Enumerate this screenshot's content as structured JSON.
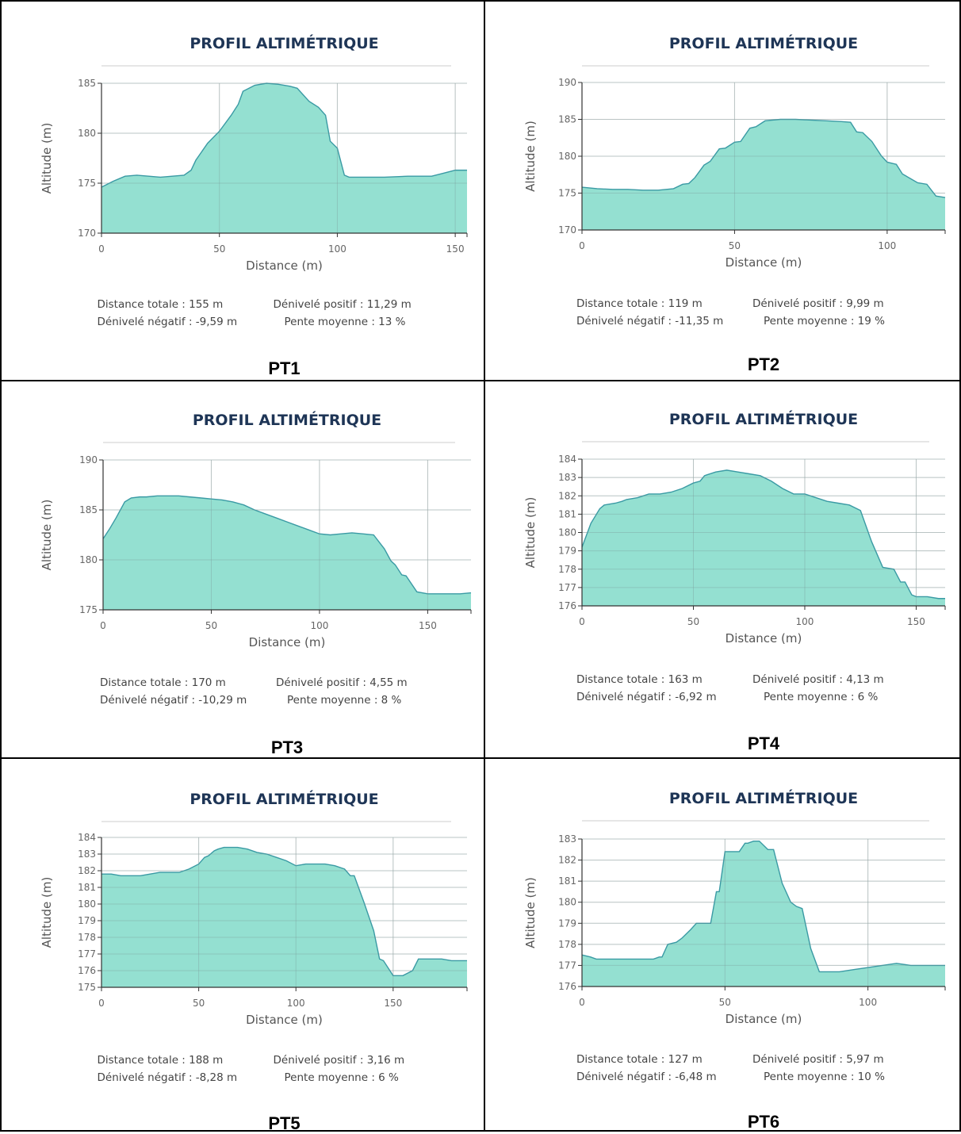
{
  "panels": [
    {
      "label": "PT1",
      "title": "PROFIL ALTIMÉTRIQUE",
      "stats": {
        "distance": "Distance totale : 155 m",
        "dplus": "Dénivelé positif : 11,29 m",
        "dminus": "Dénivelé négatif : -9,59 m",
        "slope": "Pente moyenne : 13 %"
      },
      "chart_data": {
        "type": "area",
        "xlabel": "Distance (m)",
        "ylabel": "Altitude (m)",
        "xlim": [
          0,
          155
        ],
        "ylim": [
          170,
          185
        ],
        "xticks": [
          0,
          50,
          100,
          150
        ],
        "yticks": [
          170,
          175,
          180,
          185
        ],
        "grid": true,
        "color": "#94e0d1",
        "x": [
          0,
          5,
          10,
          15,
          20,
          25,
          30,
          35,
          38,
          40,
          45,
          50,
          55,
          58,
          60,
          65,
          70,
          75,
          80,
          83,
          88,
          92,
          95,
          97,
          100,
          103,
          105,
          110,
          120,
          130,
          140,
          145,
          150,
          155
        ],
        "y": [
          174.6,
          175.2,
          175.7,
          175.8,
          175.7,
          175.6,
          175.7,
          175.8,
          176.3,
          177.3,
          179.0,
          180.2,
          181.8,
          182.9,
          184.2,
          184.8,
          185.0,
          184.9,
          184.7,
          184.5,
          183.2,
          182.6,
          181.8,
          179.2,
          178.5,
          175.8,
          175.6,
          175.6,
          175.6,
          175.7,
          175.7,
          176.0,
          176.3,
          176.3
        ]
      }
    },
    {
      "label": "PT2",
      "title": "PROFIL ALTIMÉTRIQUE",
      "stats": {
        "distance": "Distance totale : 119 m",
        "dplus": "Dénivelé positif : 9,99 m",
        "dminus": "Dénivelé négatif : -11,35 m",
        "slope": "Pente moyenne : 19 %"
      },
      "chart_data": {
        "type": "area",
        "xlabel": "Distance (m)",
        "ylabel": "Altitude (m)",
        "xlim": [
          0,
          119
        ],
        "ylim": [
          170,
          190
        ],
        "xticks": [
          0,
          50,
          100
        ],
        "yticks": [
          170,
          175,
          180,
          185,
          190
        ],
        "grid": true,
        "color": "#94e0d1",
        "x": [
          0,
          5,
          10,
          15,
          20,
          25,
          30,
          33,
          35,
          37,
          40,
          42,
          45,
          47,
          50,
          52,
          55,
          57,
          60,
          65,
          70,
          75,
          80,
          85,
          88,
          90,
          92,
          95,
          98,
          100,
          103,
          105,
          110,
          113,
          116,
          119
        ],
        "y": [
          175.8,
          175.6,
          175.5,
          175.5,
          175.4,
          175.4,
          175.6,
          176.2,
          176.3,
          177.1,
          178.8,
          179.3,
          181.0,
          181.1,
          181.9,
          182.0,
          183.8,
          184.0,
          184.8,
          185.0,
          185.0,
          184.9,
          184.8,
          184.7,
          184.6,
          183.3,
          183.2,
          182.0,
          180.1,
          179.2,
          178.9,
          177.6,
          176.4,
          176.2,
          174.6,
          174.4
        ]
      }
    },
    {
      "label": "PT3",
      "title": "PROFIL ALTIMÉTRIQUE",
      "stats": {
        "distance": "Distance totale : 170 m",
        "dplus": "Dénivelé positif : 4,55 m",
        "dminus": "Dénivelé négatif : -10,29 m",
        "slope": "Pente moyenne : 8 %"
      },
      "chart_data": {
        "type": "area",
        "xlabel": "Distance (m)",
        "ylabel": "Altitude (m)",
        "xlim": [
          0,
          170
        ],
        "ylim": [
          175,
          190
        ],
        "xticks": [
          0,
          50,
          100,
          150
        ],
        "yticks": [
          175,
          180,
          185,
          190
        ],
        "grid": true,
        "color": "#94e0d1",
        "x": [
          0,
          3,
          6,
          10,
          13,
          17,
          20,
          25,
          30,
          35,
          40,
          45,
          50,
          55,
          60,
          65,
          70,
          75,
          80,
          85,
          90,
          95,
          100,
          105,
          110,
          115,
          120,
          125,
          130,
          133,
          135,
          138,
          140,
          145,
          150,
          155,
          160,
          165,
          170
        ],
        "y": [
          182.1,
          183.1,
          184.2,
          185.8,
          186.2,
          186.3,
          186.3,
          186.4,
          186.4,
          186.4,
          186.3,
          186.2,
          186.1,
          186.0,
          185.8,
          185.5,
          185.0,
          184.6,
          184.2,
          183.8,
          183.4,
          183.0,
          182.6,
          182.5,
          182.6,
          182.7,
          182.6,
          182.5,
          181.1,
          179.9,
          179.5,
          178.5,
          178.4,
          176.8,
          176.6,
          176.6,
          176.6,
          176.6,
          176.7
        ]
      }
    },
    {
      "label": "PT4",
      "title": "PROFIL ALTIMÉTRIQUE",
      "stats": {
        "distance": "Distance totale : 163 m",
        "dplus": "Dénivelé positif : 4,13 m",
        "dminus": "Dénivelé négatif : -6,92 m",
        "slope": "Pente moyenne : 6 %"
      },
      "chart_data": {
        "type": "area",
        "xlabel": "Distance (m)",
        "ylabel": "Altitude (m)",
        "xlim": [
          0,
          163
        ],
        "ylim": [
          176,
          184
        ],
        "xticks": [
          0,
          50,
          100,
          150
        ],
        "yticks": [
          176,
          177,
          178,
          179,
          180,
          181,
          182,
          183,
          184
        ],
        "grid": true,
        "color": "#94e0d1",
        "x": [
          0,
          4,
          8,
          10,
          15,
          18,
          20,
          25,
          30,
          35,
          40,
          45,
          50,
          53,
          55,
          60,
          65,
          70,
          75,
          80,
          85,
          90,
          95,
          100,
          105,
          110,
          115,
          120,
          125,
          130,
          135,
          140,
          143,
          145,
          148,
          150,
          155,
          160,
          163
        ],
        "y": [
          179.2,
          180.5,
          181.3,
          181.5,
          181.6,
          181.7,
          181.8,
          181.9,
          182.1,
          182.1,
          182.2,
          182.4,
          182.7,
          182.8,
          183.1,
          183.3,
          183.4,
          183.3,
          183.2,
          183.1,
          182.8,
          182.4,
          182.1,
          182.1,
          181.9,
          181.7,
          181.6,
          181.5,
          181.2,
          179.5,
          178.1,
          178.0,
          177.3,
          177.3,
          176.6,
          176.5,
          176.5,
          176.4,
          176.4
        ]
      }
    },
    {
      "label": "PT5",
      "title": "PROFIL ALTIMÉTRIQUE",
      "stats": {
        "distance": "Distance totale : 188 m",
        "dplus": "Dénivelé positif : 3,16 m",
        "dminus": "Dénivelé négatif : -8,28 m",
        "slope": "Pente moyenne : 6 %"
      },
      "chart_data": {
        "type": "area",
        "xlabel": "Distance (m)",
        "ylabel": "Altitude (m)",
        "xlim": [
          0,
          188
        ],
        "ylim": [
          175,
          184
        ],
        "xticks": [
          0,
          50,
          100,
          150
        ],
        "yticks": [
          175,
          176,
          177,
          178,
          179,
          180,
          181,
          182,
          183,
          184
        ],
        "grid": true,
        "color": "#94e0d1",
        "x": [
          0,
          5,
          10,
          15,
          20,
          25,
          30,
          35,
          40,
          45,
          50,
          53,
          55,
          58,
          60,
          63,
          65,
          70,
          75,
          80,
          85,
          90,
          95,
          100,
          105,
          110,
          115,
          120,
          125,
          128,
          130,
          135,
          140,
          143,
          145,
          150,
          155,
          160,
          163,
          165,
          170,
          175,
          180,
          185,
          188
        ],
        "y": [
          181.8,
          181.8,
          181.7,
          181.7,
          181.7,
          181.8,
          181.9,
          181.9,
          181.9,
          182.1,
          182.4,
          182.8,
          182.9,
          183.2,
          183.3,
          183.4,
          183.4,
          183.4,
          183.3,
          183.1,
          183.0,
          182.8,
          182.6,
          182.3,
          182.4,
          182.4,
          182.4,
          182.3,
          182.1,
          181.7,
          181.7,
          180.1,
          178.4,
          176.7,
          176.6,
          175.7,
          175.7,
          176.0,
          176.7,
          176.7,
          176.7,
          176.7,
          176.6,
          176.6,
          176.6
        ]
      }
    },
    {
      "label": "PT6",
      "title": "PROFIL ALTIMÉTRIQUE",
      "stats": {
        "distance": "Distance totale : 127 m",
        "dplus": "Dénivelé positif : 5,97 m",
        "dminus": "Dénivelé négatif : -6,48 m",
        "slope": "Pente moyenne : 10 %"
      },
      "chart_data": {
        "type": "area",
        "xlabel": "Distance (m)",
        "ylabel": "Altitude (m)",
        "xlim": [
          0,
          127
        ],
        "ylim": [
          176,
          183
        ],
        "xticks": [
          0,
          50,
          100
        ],
        "yticks": [
          176,
          177,
          178,
          179,
          180,
          181,
          182,
          183
        ],
        "grid": true,
        "color": "#94e0d1",
        "x": [
          0,
          3,
          5,
          10,
          15,
          20,
          25,
          27,
          28,
          30,
          33,
          35,
          38,
          40,
          43,
          45,
          47,
          48,
          50,
          52,
          55,
          57,
          58,
          60,
          62,
          65,
          67,
          70,
          73,
          75,
          77,
          80,
          83,
          90,
          95,
          100,
          105,
          110,
          115,
          120,
          125,
          127
        ],
        "y": [
          177.5,
          177.4,
          177.3,
          177.3,
          177.3,
          177.3,
          177.3,
          177.4,
          177.4,
          178.0,
          178.1,
          178.3,
          178.7,
          179.0,
          179.0,
          179.0,
          180.5,
          180.5,
          182.4,
          182.4,
          182.4,
          182.8,
          182.8,
          182.9,
          182.9,
          182.5,
          182.5,
          180.9,
          180.0,
          179.8,
          179.7,
          177.8,
          176.7,
          176.7,
          176.8,
          176.9,
          177.0,
          177.1,
          177.0,
          177.0,
          177.0,
          177.0
        ]
      }
    }
  ]
}
